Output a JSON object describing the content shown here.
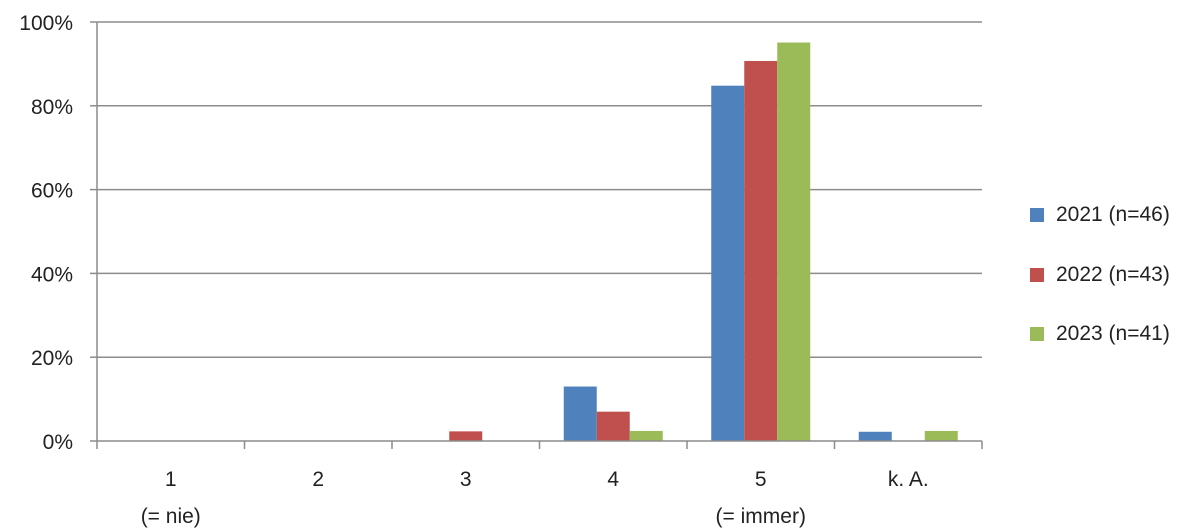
{
  "chart_data": {
    "type": "bar",
    "categories": [
      "1",
      "2",
      "3",
      "4",
      "5",
      "k. A."
    ],
    "category_sublabels": [
      "(= nie)",
      "",
      "",
      "",
      "(= immer)",
      ""
    ],
    "series": [
      {
        "name": "2021 (n=46)",
        "color": "#4F81BD",
        "values": [
          0,
          0,
          0,
          13.0,
          84.8,
          2.2
        ]
      },
      {
        "name": "2022 (n=43)",
        "color": "#C0504D",
        "values": [
          0,
          0,
          2.3,
          7.0,
          90.7,
          0
        ]
      },
      {
        "name": "2023 (n=41)",
        "color": "#9BBB59",
        "values": [
          0,
          0,
          0,
          2.4,
          95.1,
          2.4
        ]
      }
    ],
    "yticks": [
      "0%",
      "20%",
      "40%",
      "60%",
      "80%",
      "100%"
    ],
    "ylim": [
      0,
      100
    ],
    "grid": true,
    "legend_position": "right"
  }
}
